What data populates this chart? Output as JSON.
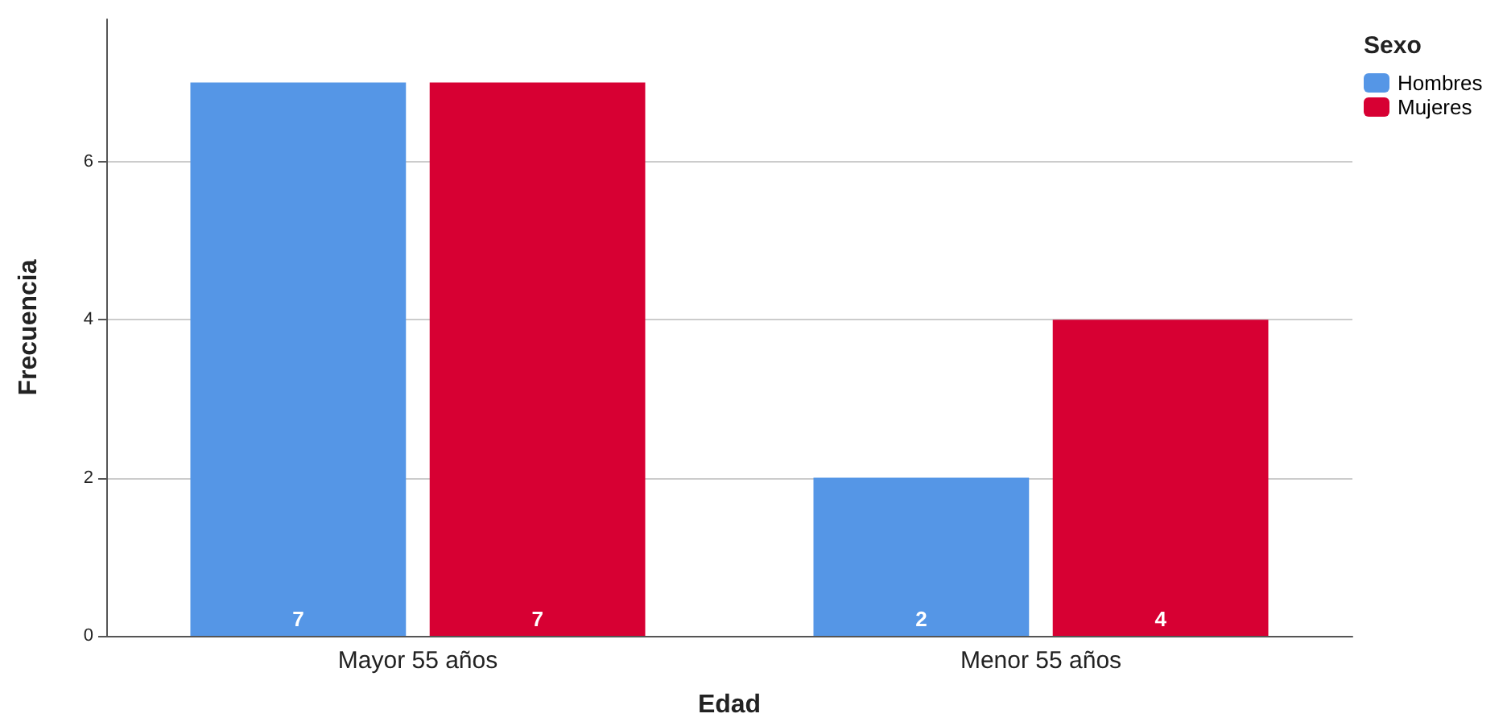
{
  "chart_data": {
    "type": "bar",
    "xlabel": "Edad",
    "ylabel": "Frecuencia",
    "legend_title": "Sexo",
    "categories": [
      "Mayor 55 años",
      "Menor 55 años"
    ],
    "series": [
      {
        "name": "Hombres",
        "color": "#5596e6",
        "values": [
          7,
          2
        ]
      },
      {
        "name": "Mujeres",
        "color": "#d70033",
        "values": [
          7,
          4
        ]
      }
    ],
    "ylim": [
      0,
      7.8
    ],
    "yticks": [
      0,
      2,
      4,
      6
    ],
    "grid": "y",
    "legend": "top right",
    "data_labels": true
  }
}
